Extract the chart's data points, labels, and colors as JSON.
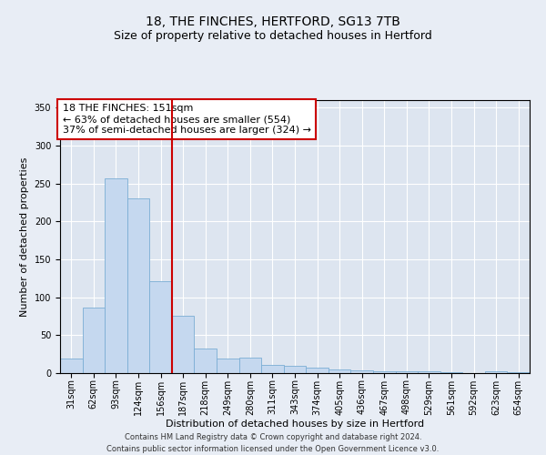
{
  "title1": "18, THE FINCHES, HERTFORD, SG13 7TB",
  "title2": "Size of property relative to detached houses in Hertford",
  "xlabel": "Distribution of detached houses by size in Hertford",
  "ylabel": "Number of detached properties",
  "footnote": "Contains HM Land Registry data © Crown copyright and database right 2024.\nContains public sector information licensed under the Open Government Licence v3.0.",
  "categories": [
    "31sqm",
    "62sqm",
    "93sqm",
    "124sqm",
    "156sqm",
    "187sqm",
    "218sqm",
    "249sqm",
    "280sqm",
    "311sqm",
    "343sqm",
    "374sqm",
    "405sqm",
    "436sqm",
    "467sqm",
    "498sqm",
    "529sqm",
    "561sqm",
    "592sqm",
    "623sqm",
    "654sqm"
  ],
  "values": [
    19,
    86,
    257,
    230,
    121,
    76,
    33,
    19,
    20,
    11,
    10,
    7,
    5,
    4,
    3,
    2,
    2,
    1,
    0,
    2,
    1
  ],
  "bar_color": "#c5d8ef",
  "bar_edge_color": "#7badd4",
  "vline_x": 4.5,
  "vline_color": "#cc0000",
  "annotation_text": "18 THE FINCHES: 151sqm\n← 63% of detached houses are smaller (554)\n37% of semi-detached houses are larger (324) →",
  "annotation_box_facecolor": "#ffffff",
  "annotation_box_edgecolor": "#cc0000",
  "bg_color": "#e8edf5",
  "plot_bg_color": "#dde5f0",
  "ylim": [
    0,
    360
  ],
  "yticks": [
    0,
    50,
    100,
    150,
    200,
    250,
    300,
    350
  ],
  "grid_color": "#ffffff",
  "title1_fontsize": 10,
  "title2_fontsize": 9,
  "tick_fontsize": 7,
  "ylabel_fontsize": 8,
  "xlabel_fontsize": 8,
  "annotation_fontsize": 8,
  "footnote_fontsize": 6
}
